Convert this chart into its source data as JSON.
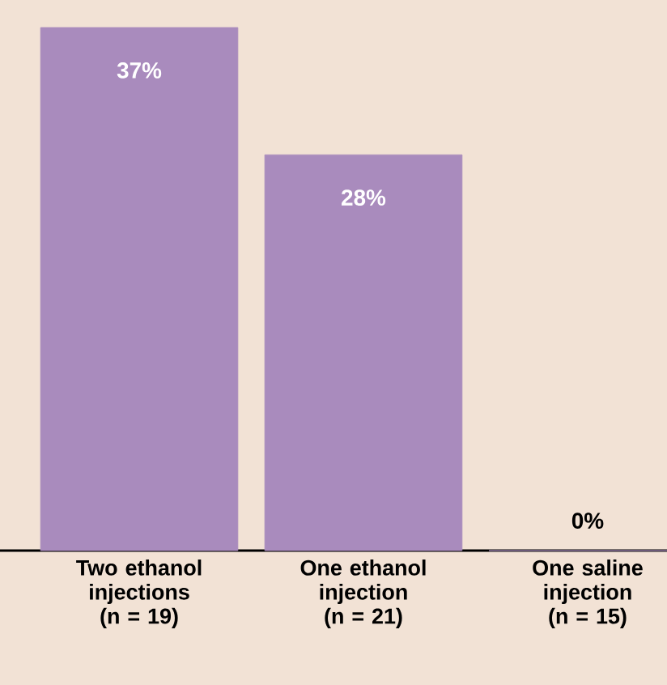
{
  "chart_data": {
    "type": "bar",
    "categories": [
      "Two ethanol injections (n = 19)",
      "One ethanol injection (n = 21)",
      "One saline injection (n = 15)"
    ],
    "values": [
      37,
      28,
      0
    ],
    "color": "#a98bbd",
    "value_labels": [
      "37%",
      "28%",
      "0%"
    ]
  }
}
